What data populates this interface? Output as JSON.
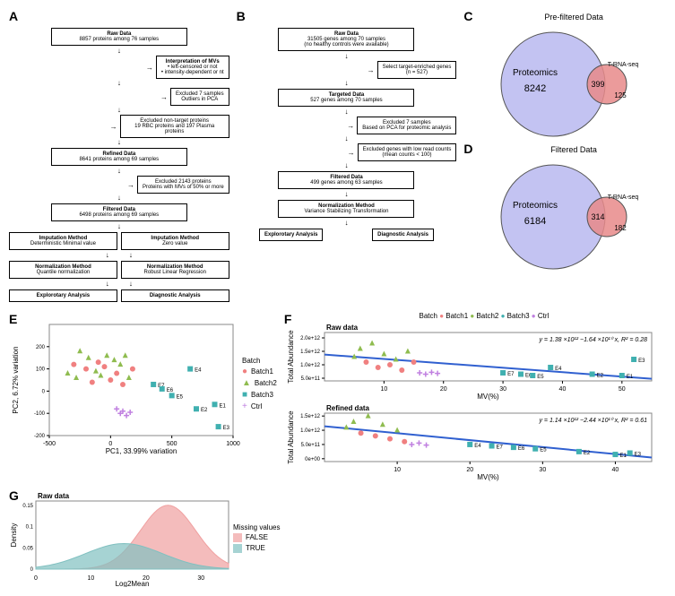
{
  "panelA": {
    "label": "A",
    "boxes": [
      {
        "title": "Raw Data",
        "sub": "8857 proteins among 76 samples"
      },
      {
        "side": true,
        "title": "Interpretation of MVs",
        "sub": "• left-censored or not\n• intensity-dependent or nt"
      },
      {
        "side": true,
        "sub": "Excluded 7 samples\nOutliers in PCA"
      },
      {
        "side": true,
        "sub": "Excluded non-target proteins\n19 RBC proteins and 197 Plasma proteins"
      },
      {
        "title": "Refined Data",
        "sub": "8641 proteins among 69 samples"
      },
      {
        "side": true,
        "sub": "Excluded 2143 proteins\nProteins with MVs of 50% or more"
      },
      {
        "title": "Filtered Data",
        "sub": "6498 proteins among 69 samples"
      }
    ],
    "split": [
      {
        "l": "Imputation Method",
        "ls": "Deterministic Minimal value",
        "r": "Imputation Method",
        "rs": "Zero value"
      },
      {
        "l": "Normalization Method",
        "ls": "Quantile normalization",
        "r": "Normalization Method",
        "rs": "Robust Linear Regression"
      },
      {
        "l": "Explorotary Analysis",
        "ls": "",
        "r": "Diagnostic Analysis",
        "rs": ""
      }
    ]
  },
  "panelB": {
    "label": "B",
    "boxes": [
      {
        "title": "Raw Data",
        "sub": "31505 genes among 70 samples\n(no healthy controls were available)"
      },
      {
        "side": true,
        "sub": "Select target-enriched genes\n(n = 527)"
      },
      {
        "title": "Targeted Data",
        "sub": "527 genes among 70 samples"
      },
      {
        "side": true,
        "sub": "Excluded 7 samples\nBased on PCA for proteomic analysis"
      },
      {
        "side": true,
        "sub": "Excluded genes with low read counts\n(mean counts < 100)"
      },
      {
        "title": "Filtered Data",
        "sub": "499 genes among 63 samples"
      },
      {
        "title": "Normalization Method",
        "sub": "Variance Stabilizing Transformation"
      }
    ],
    "final": [
      "Explorotary Analysis",
      "Diagnostic Analysis"
    ]
  },
  "panelC": {
    "label": "C",
    "title": "Pre-filtered Data",
    "prot": "Proteomics",
    "protN": "8242",
    "overlap": "399",
    "rna": "T-RNA-seq",
    "rnaN": "125",
    "protColor": "#b8b8f0",
    "rnaColor": "#e88a8a"
  },
  "panelD": {
    "label": "D",
    "title": "Filtered Data",
    "prot": "Proteomics",
    "protN": "6184",
    "overlap": "314",
    "rna": "T-RNA-seq",
    "rnaN": "182",
    "protColor": "#b8b8f0",
    "rnaColor": "#e88a8a"
  },
  "panelE": {
    "label": "E",
    "xlabel": "PC1, 33.99% variation",
    "ylabel": "PC2, 6.72% variation",
    "xlim": [
      -500,
      1000
    ],
    "ylim": [
      -200,
      300
    ],
    "xticks": [
      -500,
      0,
      500,
      1000
    ],
    "yticks": [
      -200,
      -100,
      0,
      100,
      200
    ],
    "legend_title": "Batch",
    "batches": [
      {
        "name": "Batch1",
        "color": "#f08080",
        "shape": "circle"
      },
      {
        "name": "Batch2",
        "color": "#8fbc4f",
        "shape": "triangle"
      },
      {
        "name": "Batch3",
        "color": "#40b0b0",
        "shape": "square"
      },
      {
        "name": "Ctrl",
        "color": "#c080e0",
        "shape": "plus"
      }
    ],
    "points": [
      {
        "x": -350,
        "y": 80,
        "b": 1
      },
      {
        "x": -300,
        "y": 120,
        "b": 0
      },
      {
        "x": -280,
        "y": 60,
        "b": 1
      },
      {
        "x": -250,
        "y": 180,
        "b": 1
      },
      {
        "x": -200,
        "y": 100,
        "b": 0
      },
      {
        "x": -180,
        "y": 150,
        "b": 1
      },
      {
        "x": -150,
        "y": 40,
        "b": 0
      },
      {
        "x": -120,
        "y": 90,
        "b": 1
      },
      {
        "x": -100,
        "y": 130,
        "b": 0
      },
      {
        "x": -80,
        "y": 70,
        "b": 1
      },
      {
        "x": -50,
        "y": 110,
        "b": 0
      },
      {
        "x": -30,
        "y": 160,
        "b": 1
      },
      {
        "x": 0,
        "y": 50,
        "b": 0
      },
      {
        "x": 30,
        "y": 140,
        "b": 1
      },
      {
        "x": 50,
        "y": 80,
        "b": 0
      },
      {
        "x": 80,
        "y": 120,
        "b": 1
      },
      {
        "x": 100,
        "y": 30,
        "b": 0
      },
      {
        "x": 120,
        "y": 160,
        "b": 1
      },
      {
        "x": 150,
        "y": 60,
        "b": 1
      },
      {
        "x": 180,
        "y": 100,
        "b": 0
      },
      {
        "x": 50,
        "y": -80,
        "b": 3
      },
      {
        "x": 80,
        "y": -100,
        "b": 3
      },
      {
        "x": 100,
        "y": -90,
        "b": 3
      },
      {
        "x": 130,
        "y": -110,
        "b": 3
      },
      {
        "x": 160,
        "y": -95,
        "b": 3
      },
      {
        "x": 350,
        "y": 30,
        "b": 2,
        "lbl": "E7"
      },
      {
        "x": 420,
        "y": 10,
        "b": 2,
        "lbl": "E6"
      },
      {
        "x": 500,
        "y": -20,
        "b": 2,
        "lbl": "E5"
      },
      {
        "x": 650,
        "y": 100,
        "b": 2,
        "lbl": "E4"
      },
      {
        "x": 700,
        "y": -80,
        "b": 2,
        "lbl": "E2"
      },
      {
        "x": 850,
        "y": -60,
        "b": 2,
        "lbl": "E1"
      },
      {
        "x": 880,
        "y": -160,
        "b": 2,
        "lbl": "E3"
      }
    ]
  },
  "panelF": {
    "label": "F",
    "legend_title": "Batch",
    "batches": [
      {
        "name": "Batch1",
        "color": "#f08080",
        "shape": "circle"
      },
      {
        "name": "Batch2",
        "color": "#8fbc4f",
        "shape": "triangle"
      },
      {
        "name": "Batch3",
        "color": "#40b0b0",
        "shape": "square"
      },
      {
        "name": "Ctrl",
        "color": "#c080e0",
        "shape": "plus"
      }
    ],
    "top": {
      "title": "Raw data",
      "xlabel": "MV(%)",
      "ylabel": "Total Abundance",
      "eq": "y = 1.38 ×10¹² −1.64 ×10¹⁰ x, R² = 0.28",
      "xlim": [
        0,
        55
      ],
      "ylim": [
        400000000000.0,
        2200000000000.0
      ],
      "xticks": [
        10,
        20,
        30,
        40,
        50
      ],
      "yticks": [
        {
          "v": 500000000000.0,
          "l": "5.0e+11"
        },
        {
          "v": 1000000000000.0,
          "l": "1.0e+12"
        },
        {
          "v": 1500000000000.0,
          "l": "1.5e+12"
        },
        {
          "v": 2000000000000.0,
          "l": "2.0e+12"
        }
      ],
      "line": {
        "m": -16400000000.0,
        "b": 1380000000000.0,
        "color": "#3060d0"
      },
      "points": [
        {
          "x": 5,
          "y": 1300000000000.0,
          "b": 1
        },
        {
          "x": 6,
          "y": 1600000000000.0,
          "b": 1
        },
        {
          "x": 7,
          "y": 1100000000000.0,
          "b": 0
        },
        {
          "x": 8,
          "y": 1800000000000.0,
          "b": 1
        },
        {
          "x": 9,
          "y": 900000000000.0,
          "b": 0
        },
        {
          "x": 10,
          "y": 1400000000000.0,
          "b": 1
        },
        {
          "x": 11,
          "y": 1000000000000.0,
          "b": 0
        },
        {
          "x": 12,
          "y": 1200000000000.0,
          "b": 1
        },
        {
          "x": 13,
          "y": 800000000000.0,
          "b": 0
        },
        {
          "x": 14,
          "y": 1500000000000.0,
          "b": 1
        },
        {
          "x": 15,
          "y": 1100000000000.0,
          "b": 0
        },
        {
          "x": 16,
          "y": 700000000000.0,
          "b": 3
        },
        {
          "x": 17,
          "y": 650000000000.0,
          "b": 3
        },
        {
          "x": 18,
          "y": 720000000000.0,
          "b": 3
        },
        {
          "x": 19,
          "y": 680000000000.0,
          "b": 3
        },
        {
          "x": 30,
          "y": 700000000000.0,
          "b": 2,
          "lbl": "E7"
        },
        {
          "x": 33,
          "y": 650000000000.0,
          "b": 2,
          "lbl": "E6"
        },
        {
          "x": 35,
          "y": 600000000000.0,
          "b": 2,
          "lbl": "E5"
        },
        {
          "x": 38,
          "y": 900000000000.0,
          "b": 2,
          "lbl": "E4"
        },
        {
          "x": 45,
          "y": 650000000000.0,
          "b": 2,
          "lbl": "E2"
        },
        {
          "x": 50,
          "y": 600000000000.0,
          "b": 2,
          "lbl": "E1"
        },
        {
          "x": 52,
          "y": 1200000000000.0,
          "b": 2,
          "lbl": "E3"
        }
      ]
    },
    "bottom": {
      "title": "Refined data",
      "xlabel": "MV(%)",
      "ylabel": "Total Abundance",
      "eq": "y = 1.14 ×10¹² −2.44 ×10¹⁰ x, R² = 0.61",
      "xlim": [
        0,
        45
      ],
      "ylim": [
        -100000000000.0,
        1600000000000.0
      ],
      "xticks": [
        10,
        20,
        30,
        40
      ],
      "yticks": [
        {
          "v": 0,
          "l": "0e+00"
        },
        {
          "v": 500000000000.0,
          "l": "5.0e+11"
        },
        {
          "v": 1000000000000.0,
          "l": "1.0e+12"
        },
        {
          "v": 1500000000000.0,
          "l": "1.5e+12"
        }
      ],
      "line": {
        "m": -24400000000.0,
        "b": 1140000000000.0,
        "color": "#3060d0"
      },
      "points": [
        {
          "x": 3,
          "y": 1100000000000.0,
          "b": 1
        },
        {
          "x": 4,
          "y": 1300000000000.0,
          "b": 1
        },
        {
          "x": 5,
          "y": 900000000000.0,
          "b": 0
        },
        {
          "x": 6,
          "y": 1500000000000.0,
          "b": 1
        },
        {
          "x": 7,
          "y": 800000000000.0,
          "b": 0
        },
        {
          "x": 8,
          "y": 1200000000000.0,
          "b": 1
        },
        {
          "x": 9,
          "y": 700000000000.0,
          "b": 0
        },
        {
          "x": 10,
          "y": 1000000000000.0,
          "b": 1
        },
        {
          "x": 11,
          "y": 600000000000.0,
          "b": 0
        },
        {
          "x": 12,
          "y": 500000000000.0,
          "b": 3
        },
        {
          "x": 13,
          "y": 550000000000.0,
          "b": 3
        },
        {
          "x": 14,
          "y": 480000000000.0,
          "b": 3
        },
        {
          "x": 20,
          "y": 500000000000.0,
          "b": 2,
          "lbl": "E4"
        },
        {
          "x": 23,
          "y": 450000000000.0,
          "b": 2,
          "lbl": "E7"
        },
        {
          "x": 26,
          "y": 400000000000.0,
          "b": 2,
          "lbl": "E6"
        },
        {
          "x": 29,
          "y": 350000000000.0,
          "b": 2,
          "lbl": "E5"
        },
        {
          "x": 35,
          "y": 250000000000.0,
          "b": 2,
          "lbl": "E2"
        },
        {
          "x": 40,
          "y": 150000000000.0,
          "b": 2,
          "lbl": "E1"
        },
        {
          "x": 42,
          "y": 200000000000.0,
          "b": 2,
          "lbl": "E3"
        }
      ]
    }
  },
  "panelG": {
    "label": "G",
    "title": "Raw data",
    "xlabel": "Log2Mean",
    "ylabel": "Density",
    "xlim": [
      0,
      35
    ],
    "ylim": [
      0,
      0.16
    ],
    "xticks": [
      0,
      10,
      20,
      30
    ],
    "yticks": [
      0,
      0.05,
      0.1,
      0.15
    ],
    "legend_title": "Missing values",
    "series": [
      {
        "name": "FALSE",
        "color": "#f0a0a0",
        "peak_x": 24,
        "peak_y": 0.15,
        "width": 5
      },
      {
        "name": "TRUE",
        "color": "#80c0c0",
        "peak_x": 16,
        "peak_y": 0.06,
        "width": 7
      }
    ]
  }
}
